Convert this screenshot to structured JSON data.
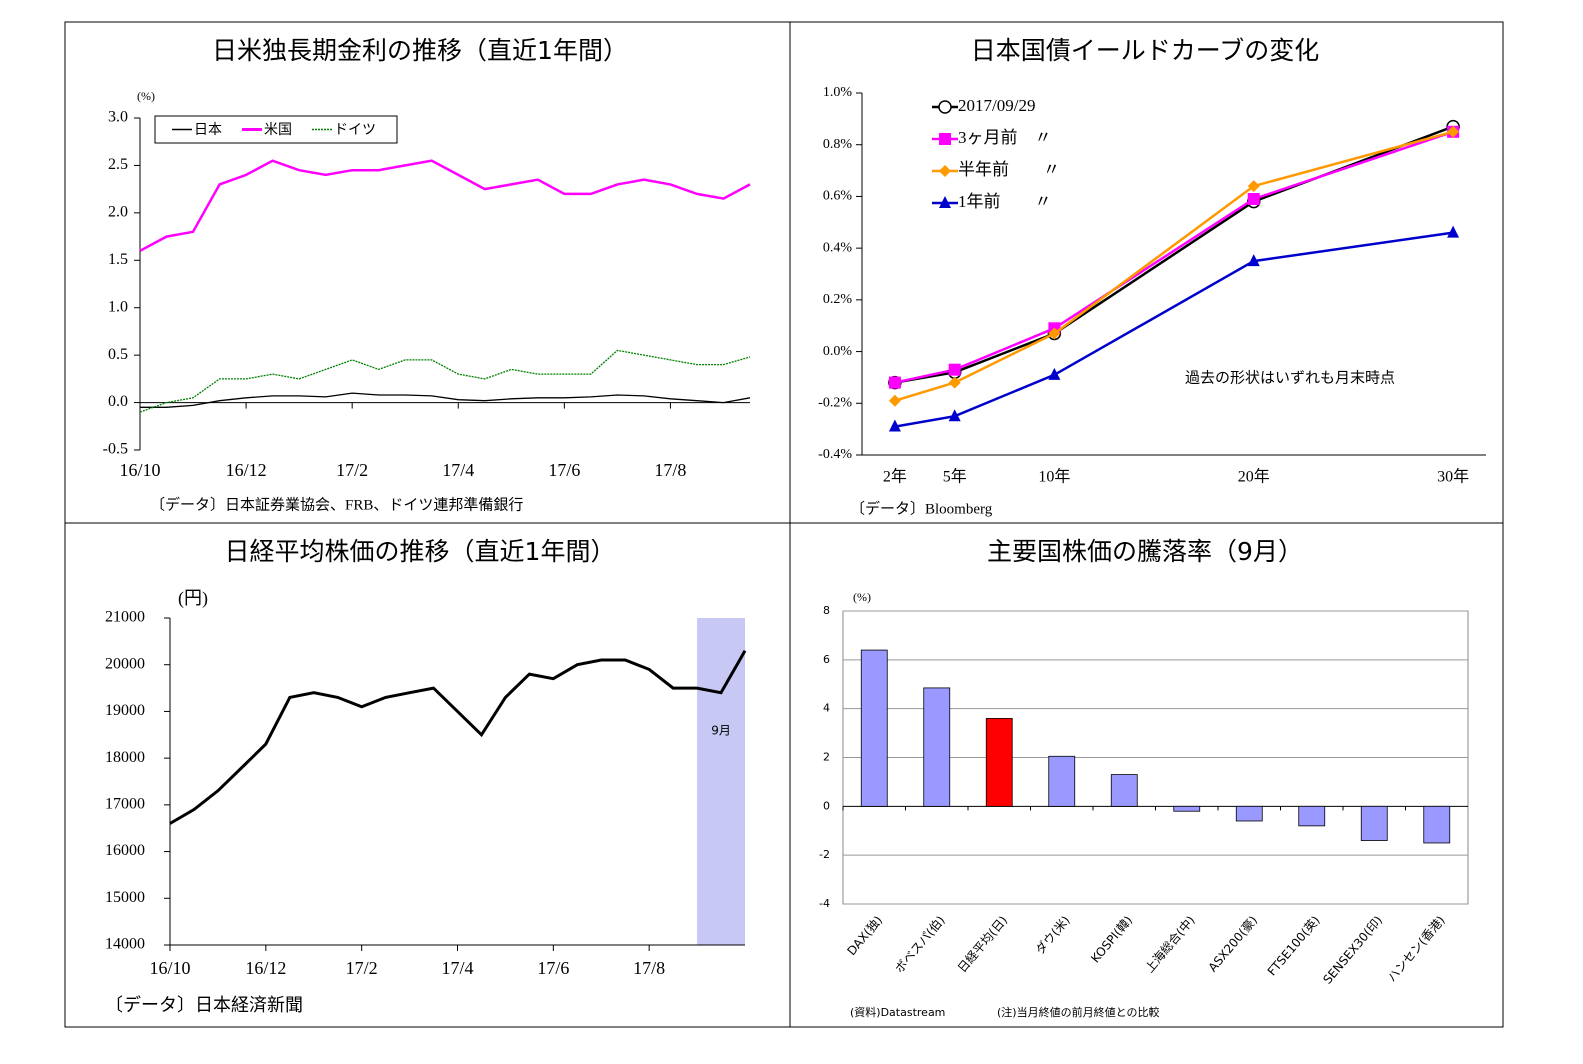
{
  "chart_data": [
    {
      "type": "line",
      "title": "日米独長期金利の推移（直近1年間）",
      "unit_label": "(%)",
      "source": "〔データ〕日本証券業協会、FRB、ドイツ連邦準備銀行",
      "categories": [
        "16/10",
        null,
        null,
        null,
        "16/12",
        null,
        null,
        null,
        "17/2",
        null,
        null,
        null,
        "17/4",
        null,
        null,
        null,
        "17/6",
        null,
        null,
        null,
        "17/8",
        null,
        null,
        null
      ],
      "series": [
        {
          "name": "日本",
          "color": "#000000",
          "values": [
            -0.05,
            -0.05,
            -0.03,
            0.02,
            0.05,
            0.07,
            0.07,
            0.06,
            0.1,
            0.08,
            0.08,
            0.07,
            0.03,
            0.02,
            0.04,
            0.05,
            0.05,
            0.06,
            0.08,
            0.07,
            0.04,
            0.02,
            0.0,
            0.05
          ]
        },
        {
          "name": "米国",
          "color": "#ff00ff",
          "values": [
            1.6,
            1.75,
            1.8,
            2.3,
            2.4,
            2.55,
            2.45,
            2.4,
            2.45,
            2.45,
            2.5,
            2.55,
            2.4,
            2.25,
            2.3,
            2.35,
            2.2,
            2.2,
            2.3,
            2.35,
            2.3,
            2.2,
            2.15,
            2.3
          ]
        },
        {
          "name": "ドイツ",
          "color": "#008000",
          "values": [
            -0.1,
            0.0,
            0.05,
            0.25,
            0.25,
            0.3,
            0.25,
            0.35,
            0.45,
            0.35,
            0.45,
            0.45,
            0.3,
            0.25,
            0.35,
            0.3,
            0.3,
            0.3,
            0.55,
            0.5,
            0.45,
            0.4,
            0.4,
            0.48
          ]
        }
      ],
      "ylim": [
        -0.5,
        3.0
      ],
      "yticks": [
        {
          "value": 3,
          "label": "3.0"
        },
        2.5,
        {
          "value": 2,
          "label": "2.0"
        },
        1.5,
        {
          "value": 1,
          "label": "1.0"
        },
        0.5,
        {
          "value": 0,
          "label": "0.0"
        },
        -0.5
      ],
      "legend": "upper left"
    },
    {
      "type": "line",
      "title": "日本国債イールドカーブの変化",
      "source": "〔データ〕Bloomberg",
      "annotation": "過去の形状はいずれも月末時点",
      "x": [
        2,
        5,
        10,
        20,
        30
      ],
      "series": [
        {
          "name": "2017/09/29",
          "color": "#000000",
          "marker": "circle-open",
          "values": [
            -0.12,
            -0.08,
            0.07,
            0.58,
            0.87
          ]
        },
        {
          "name": "3ヶ月前　〃",
          "color": "#ff00ff",
          "marker": "square",
          "values": [
            -0.12,
            -0.07,
            0.09,
            0.59,
            0.85
          ]
        },
        {
          "name": "半年前　　〃",
          "color": "#ff9900",
          "marker": "diamond",
          "values": [
            -0.19,
            -0.12,
            0.07,
            0.64,
            0.85
          ]
        },
        {
          "name": "1年前　　〃",
          "color": "#0000cc",
          "marker": "triangle",
          "values": [
            -0.29,
            -0.25,
            -0.09,
            0.35,
            0.46
          ]
        }
      ],
      "xlim": [
        0.35,
        31.65
      ],
      "xticks": [
        {
          "value": 2,
          "label": "2年"
        },
        {
          "value": 5,
          "label": "5年"
        },
        {
          "value": 10,
          "label": "10年"
        },
        {
          "value": 20,
          "label": "20年"
        },
        {
          "value": 30,
          "label": "30年"
        }
      ],
      "ylim": [
        -0.4,
        1.0
      ],
      "yticks": [
        {
          "value": 1,
          "label": "1.0%"
        },
        {
          "value": 0.8,
          "label": "0.8%"
        },
        {
          "value": 0.6,
          "label": "0.6%"
        },
        {
          "value": 0.4,
          "label": "0.4%"
        },
        {
          "value": 0.2,
          "label": "0.2%"
        },
        {
          "value": 0,
          "label": "0.0%"
        },
        {
          "value": -0.2,
          "label": "-0.2%"
        },
        {
          "value": -0.4,
          "label": "-0.4%"
        }
      ],
      "legend": "upper left"
    },
    {
      "type": "line",
      "title": "日経平均株価の推移（直近1年間）",
      "unit_label": "(円)",
      "source": "〔データ〕日本経済新聞",
      "highlight_label": "9月",
      "categories": [
        "16/10",
        null,
        null,
        null,
        "16/12",
        null,
        null,
        null,
        "17/2",
        null,
        null,
        null,
        "17/4",
        null,
        null,
        null,
        "17/6",
        null,
        null,
        null,
        "17/8",
        null,
        null,
        null,
        null
      ],
      "series": [
        {
          "name": "日経平均",
          "color": "#000000",
          "values": [
            16600,
            16900,
            17300,
            17800,
            18300,
            19300,
            19400,
            19300,
            19100,
            19300,
            19400,
            19500,
            19000,
            18500,
            19300,
            19800,
            19700,
            20000,
            20100,
            20100,
            19900,
            19500,
            19500,
            19400,
            20300
          ]
        }
      ],
      "ylim": [
        14000,
        21000
      ],
      "yticks": [
        14000,
        15000,
        16000,
        17000,
        18000,
        19000,
        20000,
        21000
      ]
    },
    {
      "type": "bar",
      "title": "主要国株価の騰落率（9月）",
      "unit_label": "(%)",
      "notes": [
        "(資料)Datastream",
        "(注)当月終値の前月終値との比較"
      ],
      "categories": [
        "DAX(独)",
        "ボベスパ(伯)",
        "日経平均(日)",
        "ダウ(米)",
        "KOSPI(韓)",
        "上海総合(中)",
        "ASX200(豪)",
        "FTSE100(英)",
        "SENSEX30(印)",
        "ハンセン(香港)"
      ],
      "values": [
        6.4,
        4.85,
        3.6,
        2.05,
        1.3,
        -0.2,
        -0.6,
        -0.8,
        -1.4,
        -1.5
      ],
      "colors": [
        "#9999ff",
        "#9999ff",
        "#ff0000",
        "#9999ff",
        "#9999ff",
        "#9999ff",
        "#9999ff",
        "#9999ff",
        "#9999ff",
        "#9999ff"
      ],
      "ylim": [
        -4,
        8
      ],
      "yticks": [
        -4,
        -2,
        0,
        2,
        4,
        6,
        8
      ],
      "grid": true
    }
  ]
}
